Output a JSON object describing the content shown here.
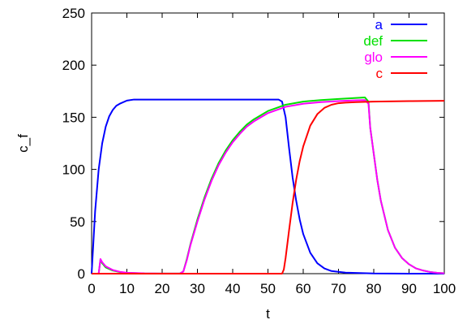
{
  "chart_data": {
    "type": "line",
    "title": "",
    "xlabel": "t",
    "ylabel": "c_f",
    "xlim": [
      0,
      100
    ],
    "ylim": [
      0,
      250
    ],
    "xticks": [
      0,
      10,
      20,
      30,
      40,
      50,
      60,
      70,
      80,
      90,
      100
    ],
    "yticks": [
      0,
      50,
      100,
      150,
      200,
      250
    ],
    "grid": false,
    "legend": "top-right",
    "series": [
      {
        "name": "a",
        "color": "#0000ff",
        "points": [
          [
            0,
            0
          ],
          [
            1,
            60
          ],
          [
            2,
            100
          ],
          [
            3,
            125
          ],
          [
            4,
            141
          ],
          [
            5,
            151
          ],
          [
            6,
            157
          ],
          [
            7,
            161
          ],
          [
            8,
            163
          ],
          [
            10,
            166
          ],
          [
            12,
            167
          ],
          [
            20,
            167
          ],
          [
            30,
            167
          ],
          [
            40,
            167
          ],
          [
            50,
            167
          ],
          [
            53,
            167
          ],
          [
            54,
            165
          ],
          [
            55,
            150
          ],
          [
            56,
            120
          ],
          [
            57,
            92
          ],
          [
            58,
            70
          ],
          [
            59,
            52
          ],
          [
            60,
            38
          ],
          [
            62,
            20
          ],
          [
            64,
            10
          ],
          [
            66,
            5
          ],
          [
            68,
            2.5
          ],
          [
            72,
            1
          ],
          [
            80,
            0.2
          ],
          [
            90,
            0
          ],
          [
            100,
            0
          ]
        ]
      },
      {
        "name": "def",
        "color": "#00e000",
        "points": [
          [
            0,
            0
          ],
          [
            2,
            0
          ],
          [
            2.5,
            13
          ],
          [
            3,
            10
          ],
          [
            4,
            6
          ],
          [
            6,
            3
          ],
          [
            8,
            1.5
          ],
          [
            10,
            0.8
          ],
          [
            15,
            0.2
          ],
          [
            20,
            0.1
          ],
          [
            25,
            0.1
          ],
          [
            26,
            2
          ],
          [
            27,
            14
          ],
          [
            28,
            28
          ],
          [
            30,
            52
          ],
          [
            32,
            73
          ],
          [
            34,
            91
          ],
          [
            36,
            106
          ],
          [
            38,
            118
          ],
          [
            40,
            128
          ],
          [
            42,
            136
          ],
          [
            44,
            143
          ],
          [
            46,
            148
          ],
          [
            48,
            152
          ],
          [
            50,
            156
          ],
          [
            55,
            162
          ],
          [
            60,
            165
          ],
          [
            65,
            166.5
          ],
          [
            70,
            167.5
          ],
          [
            75,
            168.5
          ],
          [
            77.5,
            169
          ],
          [
            78.5,
            165
          ],
          [
            79,
            140
          ],
          [
            80,
            115
          ],
          [
            81,
            90
          ],
          [
            82,
            70
          ],
          [
            84,
            42
          ],
          [
            86,
            25
          ],
          [
            88,
            15
          ],
          [
            90,
            9
          ],
          [
            92,
            5
          ],
          [
            94,
            3
          ],
          [
            96,
            1.6
          ],
          [
            98,
            0.8
          ],
          [
            100,
            0.4
          ]
        ]
      },
      {
        "name": "glo",
        "color": "#ff00ff",
        "points": [
          [
            0,
            0
          ],
          [
            2,
            0
          ],
          [
            2.5,
            14
          ],
          [
            3,
            11
          ],
          [
            4,
            7
          ],
          [
            6,
            3.5
          ],
          [
            8,
            1.8
          ],
          [
            10,
            0.9
          ],
          [
            15,
            0.3
          ],
          [
            20,
            0.1
          ],
          [
            25,
            0.1
          ],
          [
            26,
            2
          ],
          [
            27,
            13
          ],
          [
            28,
            27
          ],
          [
            30,
            50
          ],
          [
            32,
            71
          ],
          [
            34,
            89
          ],
          [
            36,
            104
          ],
          [
            38,
            116
          ],
          [
            40,
            126
          ],
          [
            42,
            134
          ],
          [
            44,
            141
          ],
          [
            46,
            146
          ],
          [
            48,
            150
          ],
          [
            50,
            154
          ],
          [
            55,
            160
          ],
          [
            60,
            163
          ],
          [
            65,
            164.5
          ],
          [
            70,
            165.5
          ],
          [
            75,
            166.3
          ],
          [
            77.5,
            166.5
          ],
          [
            78.5,
            163
          ],
          [
            79,
            140
          ],
          [
            80,
            115
          ],
          [
            81,
            90
          ],
          [
            82,
            70
          ],
          [
            84,
            42
          ],
          [
            86,
            25
          ],
          [
            88,
            15
          ],
          [
            90,
            9
          ],
          [
            92,
            5
          ],
          [
            94,
            3
          ],
          [
            96,
            1.6
          ],
          [
            98,
            0.8
          ],
          [
            100,
            0.4
          ]
        ]
      },
      {
        "name": "c",
        "color": "#ff0000",
        "points": [
          [
            0,
            0
          ],
          [
            54,
            0
          ],
          [
            54.5,
            4
          ],
          [
            55,
            15
          ],
          [
            56,
            42
          ],
          [
            57,
            68
          ],
          [
            58,
            90
          ],
          [
            59,
            108
          ],
          [
            60,
            122
          ],
          [
            62,
            142
          ],
          [
            64,
            153
          ],
          [
            66,
            159
          ],
          [
            68,
            162
          ],
          [
            70,
            163.5
          ],
          [
            72,
            164
          ],
          [
            75,
            164.5
          ],
          [
            80,
            165
          ],
          [
            90,
            165.5
          ],
          [
            100,
            165.8
          ]
        ]
      }
    ]
  }
}
